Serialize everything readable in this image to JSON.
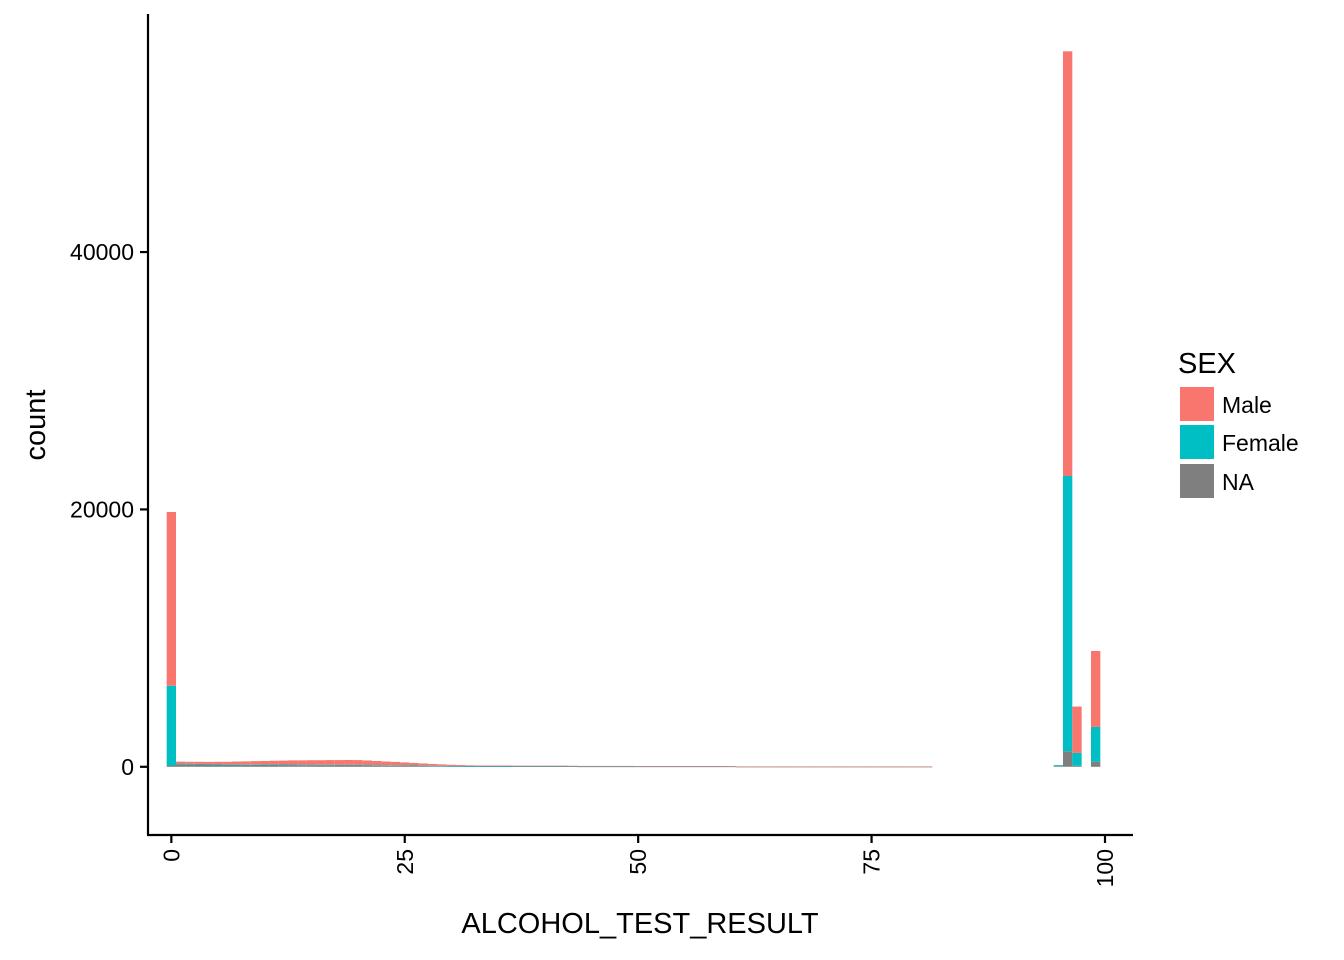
{
  "chart_data": {
    "type": "bar",
    "stacked": true,
    "xlabel": "ALCOHOL_TEST_RESULT",
    "ylabel": "count",
    "xlim": [
      -2.5,
      103
    ],
    "ylim": [
      -5300,
      58500
    ],
    "x_ticks": [
      0,
      25,
      50,
      75,
      100
    ],
    "y_ticks": [
      0,
      20000,
      40000
    ],
    "bin_width": 1,
    "grid": false,
    "legend": {
      "title": "SEX",
      "position": "right",
      "entries": [
        "Male",
        "Female",
        "NA"
      ]
    },
    "colors": {
      "Male": "#F8766D",
      "Female": "#00BFC4",
      "NA": "#7F7F7F"
    },
    "x": [
      0,
      1,
      2,
      3,
      4,
      5,
      6,
      7,
      8,
      9,
      10,
      11,
      12,
      13,
      14,
      15,
      16,
      17,
      18,
      19,
      20,
      21,
      22,
      23,
      24,
      25,
      26,
      27,
      28,
      29,
      30,
      31,
      32,
      33,
      34,
      35,
      36,
      37,
      38,
      39,
      40,
      41,
      42,
      43,
      44,
      45,
      46,
      47,
      48,
      49,
      50,
      51,
      52,
      53,
      54,
      55,
      56,
      57,
      58,
      59,
      60,
      61,
      62,
      63,
      64,
      65,
      66,
      67,
      68,
      69,
      70,
      71,
      72,
      73,
      74,
      75,
      76,
      77,
      78,
      79,
      80,
      81,
      82,
      83,
      84,
      85,
      86,
      87,
      88,
      89,
      90,
      91,
      92,
      93,
      94,
      95,
      96,
      97,
      98,
      99
    ],
    "series": [
      {
        "name": "NA",
        "values": [
          100,
          200,
          190,
          180,
          170,
          170,
          160,
          160,
          150,
          150,
          140,
          140,
          130,
          130,
          120,
          120,
          110,
          110,
          100,
          100,
          100,
          90,
          90,
          80,
          80,
          70,
          60,
          60,
          50,
          50,
          40,
          40,
          30,
          30,
          30,
          30,
          30,
          30,
          30,
          30,
          30,
          30,
          30,
          30,
          20,
          20,
          20,
          20,
          20,
          20,
          20,
          20,
          20,
          20,
          20,
          20,
          20,
          20,
          20,
          20,
          20,
          10,
          10,
          10,
          10,
          10,
          10,
          10,
          10,
          10,
          10,
          10,
          10,
          10,
          10,
          10,
          10,
          10,
          10,
          10,
          10,
          10,
          0,
          0,
          0,
          0,
          0,
          0,
          0,
          0,
          0,
          0,
          0,
          0,
          0,
          50,
          1200,
          80,
          0,
          400
        ]
      },
      {
        "name": "Female",
        "values": [
          6200,
          50,
          50,
          50,
          50,
          50,
          50,
          50,
          50,
          50,
          50,
          50,
          50,
          50,
          50,
          50,
          50,
          50,
          50,
          50,
          50,
          50,
          40,
          40,
          40,
          40,
          40,
          30,
          30,
          30,
          30,
          30,
          30,
          30,
          30,
          30,
          30,
          30,
          30,
          30,
          30,
          30,
          30,
          20,
          20,
          20,
          20,
          20,
          20,
          20,
          20,
          20,
          20,
          20,
          20,
          20,
          20,
          20,
          20,
          20,
          20,
          10,
          10,
          10,
          10,
          10,
          10,
          10,
          10,
          10,
          10,
          10,
          10,
          10,
          10,
          10,
          10,
          10,
          10,
          10,
          10,
          10,
          0,
          0,
          0,
          0,
          0,
          0,
          0,
          0,
          0,
          0,
          0,
          0,
          0,
          80,
          21400,
          1000,
          0,
          2700
        ]
      },
      {
        "name": "Male",
        "values": [
          13500,
          150,
          150,
          160,
          160,
          170,
          180,
          200,
          220,
          240,
          260,
          280,
          300,
          320,
          330,
          340,
          350,
          360,
          370,
          380,
          370,
          350,
          320,
          290,
          260,
          230,
          200,
          170,
          140,
          110,
          90,
          70,
          50,
          40,
          40,
          40,
          40,
          30,
          30,
          30,
          30,
          30,
          30,
          30,
          30,
          30,
          30,
          30,
          30,
          30,
          20,
          20,
          20,
          20,
          20,
          20,
          20,
          20,
          20,
          20,
          10,
          10,
          10,
          10,
          10,
          10,
          10,
          10,
          10,
          10,
          10,
          10,
          10,
          10,
          10,
          10,
          10,
          10,
          10,
          10,
          10,
          10,
          0,
          0,
          0,
          0,
          0,
          0,
          0,
          0,
          0,
          0,
          0,
          0,
          0,
          0,
          33000,
          3600,
          0,
          5900
        ]
      }
    ]
  }
}
